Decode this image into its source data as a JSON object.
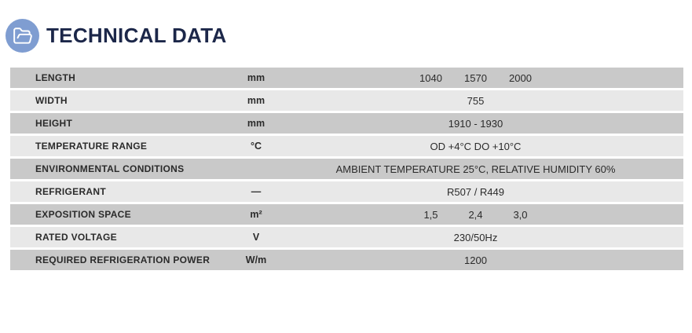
{
  "header": {
    "title": "TECHNICAL DATA",
    "icon": "open-folder-icon"
  },
  "table": {
    "rows": [
      {
        "label": "LENGTH",
        "unit": "mm",
        "values": [
          "1040",
          "1570",
          "2000"
        ]
      },
      {
        "label": "WIDTH",
        "unit": "mm",
        "values": [
          "755"
        ]
      },
      {
        "label": "HEIGHT",
        "unit": "mm",
        "values": [
          "1910 - 1930"
        ]
      },
      {
        "label": "TEMPERATURE RANGE",
        "unit": "°C",
        "values": [
          "OD +4°C DO +10°C"
        ]
      },
      {
        "label": "ENVIRONMENTAL CONDITIONS",
        "unit": "",
        "values": [
          "AMBIENT TEMPERATURE 25°C, RELATIVE HUMIDITY 60%"
        ]
      },
      {
        "label": "REFRIGERANT",
        "unit": "—",
        "values": [
          "R507 / R449"
        ]
      },
      {
        "label": "EXPOSITION SPACE",
        "unit": "m²",
        "values": [
          "1,5",
          "2,4",
          "3,0"
        ]
      },
      {
        "label": "RATED VOLTAGE",
        "unit": "V",
        "values": [
          "230/50Hz"
        ]
      },
      {
        "label": "REQUIRED REFRIGERATION POWER",
        "unit": "W/m",
        "values": [
          "1200"
        ]
      }
    ]
  },
  "colors": {
    "row_dark": "#c9c9c9",
    "row_light": "#e8e8e8",
    "title": "#1c2749",
    "icon_circle": "#7f9dd1",
    "text": "#2b2b2b"
  }
}
